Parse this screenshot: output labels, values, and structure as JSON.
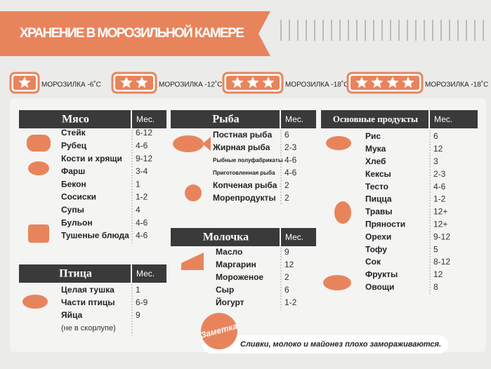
{
  "header": {
    "title": "ХРАНЕНИЕ В МОРОЗИЛЬНОЙ КАМЕРЕ"
  },
  "freezer_ratings": [
    {
      "stars": 1,
      "label": "МОРОЗИЛКА -6˚С"
    },
    {
      "stars": 2,
      "label": "МОРОЗИЛКА -12˚С"
    },
    {
      "stars": 3,
      "label": "МОРОЗИЛКА -18˚С"
    },
    {
      "stars": 4,
      "label": "МОРОЗИЛКА -18˚С"
    }
  ],
  "sections": [
    {
      "title": "Мясо",
      "months_header": "Мес.",
      "items": [
        {
          "name": "Стейк",
          "months": "6-12"
        },
        {
          "name": "Рубец",
          "months": "4-6"
        },
        {
          "name": "Кости и хрящи",
          "months": "9-12"
        },
        {
          "name": "Фарш",
          "months": "3-4"
        },
        {
          "name": "Бекон",
          "months": "1"
        },
        {
          "name": "Сосиски",
          "months": "1-2"
        },
        {
          "name": "Супы",
          "months": "4"
        },
        {
          "name": "Бульон",
          "months": "4-6"
        },
        {
          "name": "Тушеные блюда",
          "months": "4-6"
        }
      ]
    },
    {
      "title": "Птица",
      "months_header": "Мес.",
      "items": [
        {
          "name": "Целая тушка",
          "months": "1"
        },
        {
          "name": "Части птицы",
          "months": "6-9"
        },
        {
          "name": "Яйца",
          "months": "9",
          "note": "(не в скорлупе)"
        }
      ]
    },
    {
      "title": "Рыба",
      "months_header": "Мес.",
      "items": [
        {
          "name": "Постная рыба",
          "months": "6"
        },
        {
          "name": "Жирная рыба",
          "months": "2-3"
        },
        {
          "name": "Рыбные полуфабрикаты",
          "months": "4-6"
        },
        {
          "name": "Приготовленная рыба",
          "months": "4-6"
        },
        {
          "name": "Копченая рыба",
          "months": "2"
        },
        {
          "name": "Морепродукты",
          "months": "2"
        }
      ]
    },
    {
      "title": "Молочка",
      "months_header": "Мес.",
      "items": [
        {
          "name": "Масло",
          "months": "9"
        },
        {
          "name": "Маргарин",
          "months": "12"
        },
        {
          "name": "Мороженое",
          "months": "2"
        },
        {
          "name": "Сыр",
          "months": "6"
        },
        {
          "name": "Йогурт",
          "months": "1-2"
        }
      ]
    },
    {
      "title": "Основные продукты",
      "months_header": "Мес.",
      "items": [
        {
          "name": "Рис",
          "months": "6"
        },
        {
          "name": "Мука",
          "months": "12"
        },
        {
          "name": "Хлеб",
          "months": "3"
        },
        {
          "name": "Кексы",
          "months": "2-3"
        },
        {
          "name": "Тесто",
          "months": "4-6"
        },
        {
          "name": "Пицца",
          "months": "1-2"
        },
        {
          "name": "Травы",
          "months": "12+"
        },
        {
          "name": "Пряности",
          "months": "12+"
        },
        {
          "name": "Орехи",
          "months": "9-12"
        },
        {
          "name": "Тофу",
          "months": "5"
        },
        {
          "name": "Сок",
          "months": "8-12"
        },
        {
          "name": "Фрукты",
          "months": "12"
        },
        {
          "name": "Овощи",
          "months": "8"
        }
      ]
    }
  ],
  "note": {
    "tag": "Заметка",
    "text": "Сливки, молоко и майонез плохо замораживаются."
  }
}
